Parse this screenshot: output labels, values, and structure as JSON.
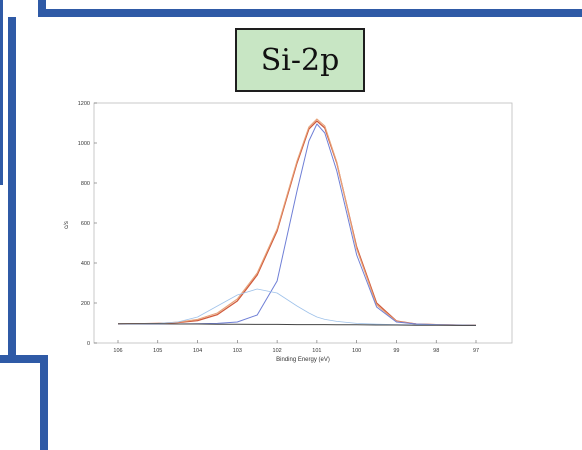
{
  "colors": {
    "frame": "#2f5aa6",
    "label_bg": "#c8e6c4",
    "envelope": "#d05a3c",
    "fit_total": "#e7a37a",
    "component_main": "#6f7fd6",
    "component_small": "#9fc2ea",
    "background_line": "#444444"
  },
  "label": {
    "text": "Si-2p"
  },
  "chart_data": {
    "type": "line",
    "title": "",
    "xlabel": "Binding Energy (eV)",
    "ylabel": "c/s",
    "xlim": [
      106,
      97
    ],
    "ylim": [
      0,
      1200
    ],
    "x_ticks": [
      106,
      105,
      104,
      103,
      102,
      101,
      100,
      99,
      98,
      97
    ],
    "y_ticks": [
      0,
      200,
      400,
      600,
      800,
      1000,
      1200
    ],
    "x": [
      106,
      105.5,
      105,
      104.5,
      104,
      103.5,
      103,
      102.5,
      102,
      101.5,
      101.2,
      101,
      100.8,
      100.5,
      100,
      99.5,
      99,
      98.5,
      98,
      97.5,
      97
    ],
    "series": [
      {
        "name": "",
        "color": "#d05a3c",
        "values": [
          95,
          96,
          98,
          102,
          112,
          142,
          210,
          340,
          560,
          900,
          1070,
          1110,
          1075,
          900,
          480,
          200,
          110,
          95,
          92,
          90,
          88
        ]
      },
      {
        "name": "",
        "color": "#e7a37a",
        "values": [
          95,
          96,
          98,
          104,
          118,
          150,
          220,
          350,
          570,
          910,
          1080,
          1120,
          1085,
          905,
          470,
          190,
          108,
          95,
          92,
          90,
          88
        ]
      },
      {
        "name": "",
        "color": "#6f7fd6",
        "values": [
          95,
          95,
          95,
          95,
          96,
          98,
          105,
          140,
          310,
          760,
          1010,
          1095,
          1050,
          860,
          440,
          180,
          105,
          95,
          92,
          90,
          88
        ]
      },
      {
        "name": "",
        "color": "#9fc2ea",
        "values": [
          95,
          96,
          98,
          105,
          130,
          185,
          240,
          270,
          250,
          185,
          150,
          130,
          118,
          108,
          98,
          94,
          92,
          91,
          90,
          89,
          88
        ]
      },
      {
        "name": "",
        "color": "#444444",
        "values": [
          96,
          96,
          96,
          95,
          95,
          94,
          94,
          93,
          93,
          92,
          92,
          92,
          92,
          91,
          91,
          90,
          90,
          89,
          89,
          88,
          88
        ]
      }
    ]
  }
}
